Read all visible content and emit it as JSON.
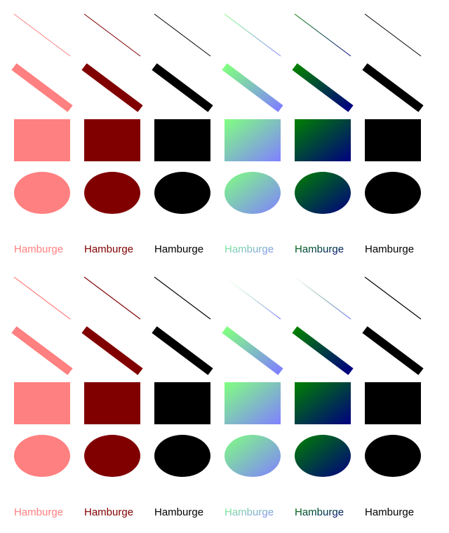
{
  "label_text": "Hamburge",
  "colors": {
    "pink": "#ff8080",
    "maroon": "#800000",
    "black": "#000000",
    "grad_light_start": "#80ff80",
    "grad_light_end": "#8080ff",
    "grad_dark_start": "#008000",
    "grad_dark_end": "#000080"
  },
  "column_styles": [
    "pink",
    "maroon",
    "black",
    "gradient-light",
    "gradient-dark",
    "black"
  ],
  "row_shapes": [
    "thin-line",
    "thick-line",
    "rectangle",
    "ellipse",
    "text"
  ],
  "blocks": [
    {
      "labels": [
        "Hamburge",
        "Hamburge",
        "Hamburge",
        "Hamburge",
        "Hamburge",
        "Hamburge"
      ]
    },
    {
      "labels": [
        "Hamburge",
        "Hamburge",
        "Hamburge",
        "Hamburge",
        "Hamburge",
        "Hamburge"
      ]
    }
  ]
}
